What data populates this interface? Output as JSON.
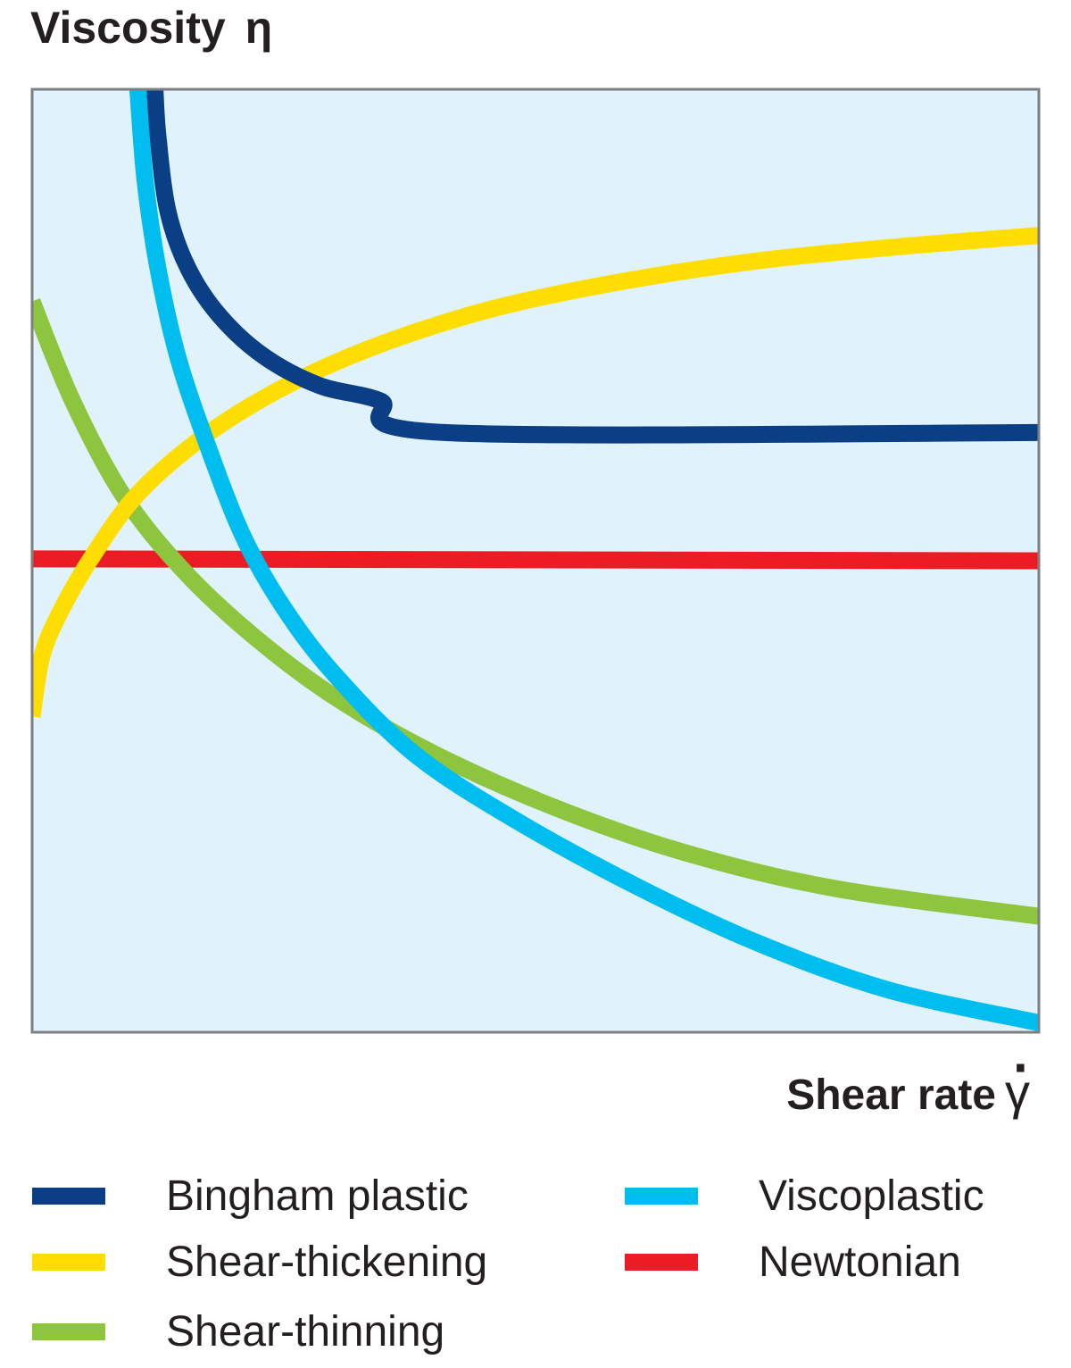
{
  "chart_data": {
    "type": "line",
    "ylabel": "Viscosity",
    "ylabel_symbol": "η",
    "xlabel": "Shear rate",
    "xlabel_symbol": "γ",
    "x_ticks": "none",
    "y_ticks": "none",
    "grid": false,
    "plot_background": "#e0f2fb",
    "frame_color": "#7d7f82",
    "xlim": [
      0,
      100
    ],
    "ylim": [
      0,
      100
    ],
    "legend_position": "bottom",
    "series": [
      {
        "name": "Bingham plastic",
        "color": "#0a3f86",
        "x": [
          12.2,
          12.5,
          13.5,
          15.5,
          18.6,
          23.0,
          28.5,
          34.5,
          41.0,
          100
        ],
        "y": [
          100,
          95.0,
          87.0,
          81.0,
          76.0,
          71.7,
          68.6,
          67.0,
          63.6,
          63.6
        ]
      },
      {
        "name": "Viscoplastic",
        "color": "#00bdf0",
        "x": [
          10.5,
          11.2,
          12.5,
          14.5,
          17.5,
          21.0,
          25.0,
          30.0,
          38.0,
          48.0,
          60.0,
          72.0,
          85.0,
          100
        ],
        "y": [
          100,
          90.5,
          81.0,
          71.5,
          62.0,
          52.5,
          45.0,
          38.0,
          29.5,
          22.5,
          15.5,
          9.5,
          4.5,
          1.0
        ]
      },
      {
        "name": "Shear-thickening",
        "color": "#fede00",
        "x": [
          0,
          1.0,
          3.0,
          6.0,
          10.0,
          15.0,
          21.0,
          28.0,
          36.0,
          46.0,
          58.0,
          72.0,
          86.0,
          100
        ],
        "y": [
          33.5,
          40.0,
          45.0,
          50.5,
          56.5,
          61.5,
          66.0,
          70.0,
          73.5,
          76.8,
          79.5,
          81.8,
          83.3,
          84.5
        ]
      },
      {
        "name": "Shear-thinning",
        "color": "#8dc53f",
        "x": [
          0,
          4.0,
          9.0,
          15.0,
          22.0,
          30.0,
          40.0,
          52.0,
          65.0,
          80.0,
          100
        ],
        "y": [
          77.5,
          67.0,
          57.0,
          49.0,
          42.0,
          35.6,
          29.5,
          23.8,
          19.0,
          15.2,
          12.3
        ]
      },
      {
        "name": "Newtonian",
        "color": "#ec1c24",
        "x": [
          0,
          100
        ],
        "y": [
          50.2,
          50.0
        ]
      }
    ]
  }
}
